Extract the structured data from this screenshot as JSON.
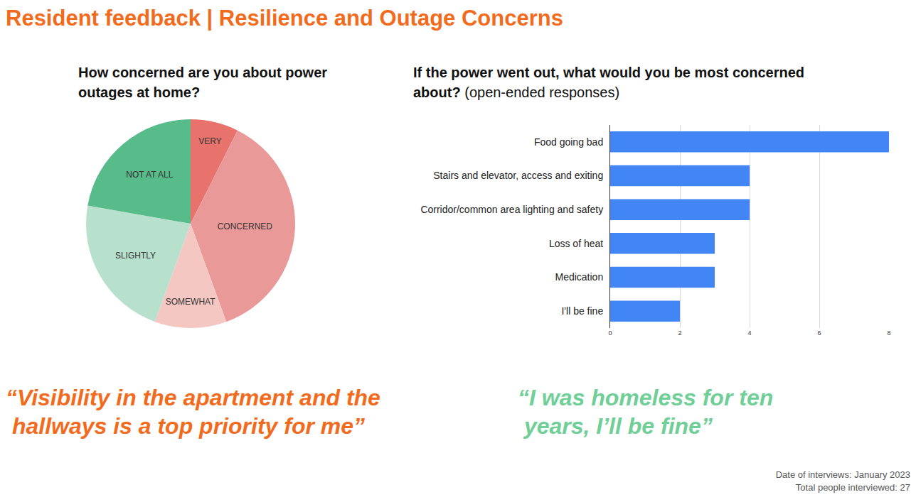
{
  "title": "Resident feedback | Resilience and Outage Concerns",
  "chart_data": [
    {
      "type": "pie",
      "title": "How concerned are you about power outages at home?",
      "categories": [
        "VERY",
        "CONCERNED",
        "SOMEWHAT",
        "SLIGHTLY",
        "NOT AT ALL"
      ],
      "values": [
        2,
        10,
        3,
        6,
        6
      ],
      "colors": [
        "#e8736c",
        "#ea9999",
        "#f4c7c3",
        "#b7e1cd",
        "#57bb8a"
      ]
    },
    {
      "type": "bar",
      "orientation": "horizontal",
      "title": "If the power went out, what would you be most concerned about?",
      "subtitle": "(open-ended responses)",
      "categories": [
        "Food going bad",
        "Stairs and elevator, access and exiting",
        "Corridor/common area lighting and safety",
        "Loss of heat",
        "Medication",
        "I'll be fine"
      ],
      "values": [
        8,
        4,
        4,
        3,
        3,
        2
      ],
      "color": "#4285f4",
      "xlim": [
        0,
        8
      ],
      "xticks": [
        0,
        2,
        4,
        6,
        8
      ],
      "grid": true
    }
  ],
  "quotes": [
    [
      "“Visibility in the apartment and the",
      " hallways is a top priority for me”"
    ],
    [
      "“I was homeless for ten",
      " years, I’ll be fine”"
    ]
  ],
  "footer": [
    "Date of interviews: January 2023",
    "Total people interviewed: 27"
  ]
}
